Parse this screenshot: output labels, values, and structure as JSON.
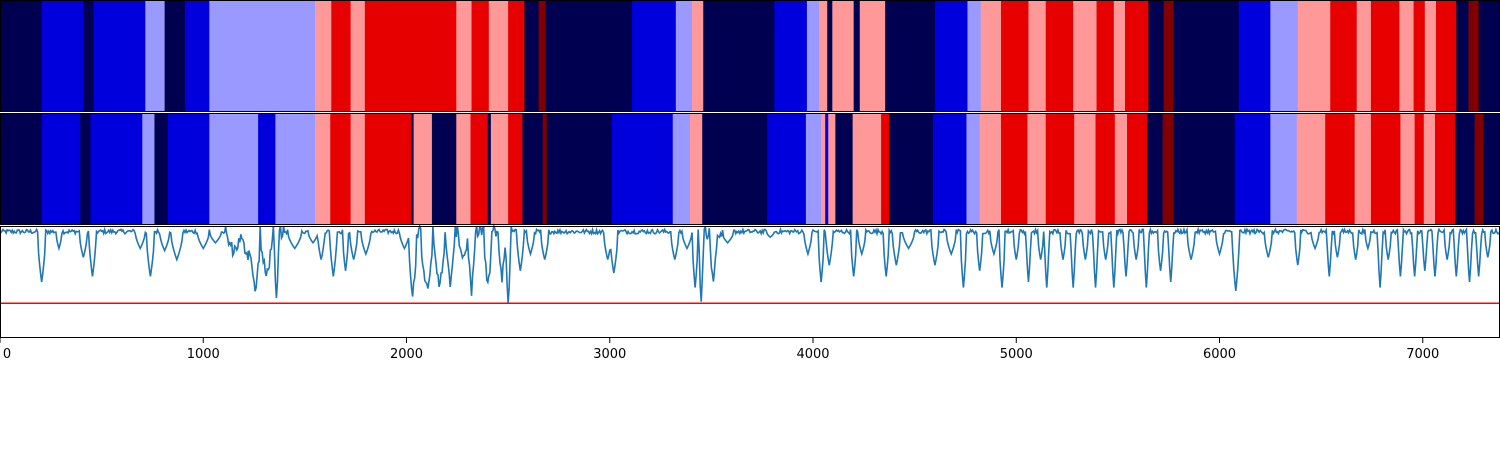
{
  "chart_data": {
    "type": "heatmap",
    "title": "",
    "xlabel": "",
    "ylabel": "",
    "xlim": [
      0,
      7380
    ],
    "x_ticks": [
      0,
      1000,
      2000,
      3000,
      4000,
      5000,
      6000,
      7000
    ],
    "x_tick_labels": [
      "0",
      "1000",
      "2000",
      "3000",
      "4000",
      "5000",
      "6000",
      "7000"
    ],
    "legend": "none",
    "grid": false,
    "palette": {
      "navy": "#000050",
      "blue": "#0000dd",
      "light_blue": "#9999ff",
      "light_red": "#ff9999",
      "red": "#e60000",
      "dark_red": "#800000",
      "line": "#1f77b4",
      "threshold": "#ff0000"
    },
    "state_rows": [
      {
        "segments": [
          [
            0,
            205,
            "navy"
          ],
          [
            205,
            410,
            "blue"
          ],
          [
            410,
            460,
            "navy"
          ],
          [
            460,
            715,
            "blue"
          ],
          [
            715,
            810,
            "light_blue"
          ],
          [
            810,
            910,
            "navy"
          ],
          [
            910,
            1030,
            "blue"
          ],
          [
            1030,
            1550,
            "light_blue"
          ],
          [
            1550,
            1630,
            "light_red"
          ],
          [
            1630,
            1725,
            "red"
          ],
          [
            1725,
            1795,
            "light_red"
          ],
          [
            1795,
            2245,
            "red"
          ],
          [
            2245,
            2320,
            "light_red"
          ],
          [
            2320,
            2405,
            "red"
          ],
          [
            2405,
            2500,
            "light_red"
          ],
          [
            2500,
            2580,
            "red"
          ],
          [
            2580,
            2650,
            "navy"
          ],
          [
            2650,
            2685,
            "dark_red"
          ],
          [
            2685,
            3110,
            "navy"
          ],
          [
            3110,
            3325,
            "blue"
          ],
          [
            3325,
            3405,
            "light_blue"
          ],
          [
            3405,
            3460,
            "light_red"
          ],
          [
            3460,
            3810,
            "navy"
          ],
          [
            3810,
            3970,
            "blue"
          ],
          [
            3970,
            4030,
            "light_blue"
          ],
          [
            4030,
            4070,
            "light_red"
          ],
          [
            4070,
            4095,
            "navy"
          ],
          [
            4095,
            4200,
            "light_red"
          ],
          [
            4200,
            4230,
            "navy"
          ],
          [
            4230,
            4355,
            "light_red"
          ],
          [
            4355,
            4600,
            "navy"
          ],
          [
            4600,
            4760,
            "blue"
          ],
          [
            4760,
            4825,
            "light_blue"
          ],
          [
            4825,
            4925,
            "light_red"
          ],
          [
            4925,
            5060,
            "red"
          ],
          [
            5060,
            5145,
            "light_red"
          ],
          [
            5145,
            5280,
            "red"
          ],
          [
            5280,
            5395,
            "light_red"
          ],
          [
            5395,
            5480,
            "red"
          ],
          [
            5480,
            5535,
            "light_red"
          ],
          [
            5535,
            5650,
            "red"
          ],
          [
            5650,
            5725,
            "navy"
          ],
          [
            5725,
            5775,
            "dark_red"
          ],
          [
            5775,
            6095,
            "navy"
          ],
          [
            6095,
            6250,
            "blue"
          ],
          [
            6250,
            6385,
            "light_blue"
          ],
          [
            6385,
            6545,
            "light_red"
          ],
          [
            6545,
            6675,
            "red"
          ],
          [
            6675,
            6745,
            "light_red"
          ],
          [
            6745,
            6885,
            "red"
          ],
          [
            6885,
            6955,
            "light_red"
          ],
          [
            6955,
            7010,
            "red"
          ],
          [
            7010,
            7065,
            "light_red"
          ],
          [
            7065,
            7165,
            "red"
          ],
          [
            7165,
            7225,
            "navy"
          ],
          [
            7225,
            7275,
            "dark_red"
          ],
          [
            7275,
            7380,
            "navy"
          ]
        ]
      },
      {
        "segments": [
          [
            0,
            205,
            "navy"
          ],
          [
            205,
            395,
            "blue"
          ],
          [
            395,
            445,
            "navy"
          ],
          [
            445,
            700,
            "blue"
          ],
          [
            700,
            760,
            "light_blue"
          ],
          [
            760,
            825,
            "navy"
          ],
          [
            825,
            1030,
            "blue"
          ],
          [
            1030,
            1270,
            "light_blue"
          ],
          [
            1270,
            1355,
            "blue"
          ],
          [
            1355,
            1550,
            "light_blue"
          ],
          [
            1550,
            1625,
            "light_red"
          ],
          [
            1625,
            1725,
            "red"
          ],
          [
            1725,
            1795,
            "light_red"
          ],
          [
            1795,
            2025,
            "red"
          ],
          [
            2025,
            2035,
            "navy"
          ],
          [
            2035,
            2125,
            "light_red"
          ],
          [
            2125,
            2245,
            "navy"
          ],
          [
            2245,
            2315,
            "light_red"
          ],
          [
            2315,
            2400,
            "red"
          ],
          [
            2400,
            2415,
            "navy"
          ],
          [
            2415,
            2500,
            "light_red"
          ],
          [
            2500,
            2570,
            "red"
          ],
          [
            2570,
            2670,
            "navy"
          ],
          [
            2670,
            2690,
            "dark_red"
          ],
          [
            2690,
            3010,
            "navy"
          ],
          [
            3010,
            3020,
            "blue"
          ],
          [
            3020,
            3310,
            "blue"
          ],
          [
            3310,
            3395,
            "light_blue"
          ],
          [
            3395,
            3455,
            "light_red"
          ],
          [
            3455,
            3775,
            "navy"
          ],
          [
            3775,
            3965,
            "blue"
          ],
          [
            3965,
            4040,
            "light_blue"
          ],
          [
            4040,
            4060,
            "light_red"
          ],
          [
            4060,
            4075,
            "blue"
          ],
          [
            4075,
            4110,
            "light_red"
          ],
          [
            4110,
            4195,
            "navy"
          ],
          [
            4195,
            4215,
            "light_red"
          ],
          [
            4215,
            4335,
            "light_red"
          ],
          [
            4335,
            4375,
            "red"
          ],
          [
            4375,
            4590,
            "navy"
          ],
          [
            4590,
            4755,
            "blue"
          ],
          [
            4755,
            4820,
            "light_blue"
          ],
          [
            4820,
            4925,
            "light_red"
          ],
          [
            4925,
            5055,
            "red"
          ],
          [
            5055,
            5145,
            "light_red"
          ],
          [
            5145,
            5285,
            "red"
          ],
          [
            5285,
            5390,
            "light_red"
          ],
          [
            5390,
            5485,
            "red"
          ],
          [
            5485,
            5545,
            "light_red"
          ],
          [
            5545,
            5645,
            "red"
          ],
          [
            5645,
            5720,
            "navy"
          ],
          [
            5720,
            5775,
            "dark_red"
          ],
          [
            5775,
            6075,
            "navy"
          ],
          [
            6075,
            6250,
            "blue"
          ],
          [
            6250,
            6380,
            "light_blue"
          ],
          [
            6380,
            6520,
            "light_red"
          ],
          [
            6520,
            6665,
            "red"
          ],
          [
            6665,
            6745,
            "light_red"
          ],
          [
            6745,
            6890,
            "red"
          ],
          [
            6890,
            6960,
            "light_red"
          ],
          [
            6960,
            7005,
            "red"
          ],
          [
            7005,
            7060,
            "light_red"
          ],
          [
            7060,
            7160,
            "red"
          ],
          [
            7160,
            7255,
            "navy"
          ],
          [
            7255,
            7300,
            "dark_red"
          ],
          [
            7300,
            7380,
            "navy"
          ]
        ]
      }
    ],
    "line_panel": {
      "ylim": [
        0,
        1
      ],
      "threshold": 0.31,
      "baseline": 0.95,
      "dips": [
        [
          205,
          0.5,
          20
        ],
        [
          290,
          0.8,
          15
        ],
        [
          410,
          0.72,
          20
        ],
        [
          455,
          0.55,
          18
        ],
        [
          690,
          0.8,
          25
        ],
        [
          740,
          0.55,
          20
        ],
        [
          810,
          0.78,
          25
        ],
        [
          870,
          0.7,
          30
        ],
        [
          1000,
          0.8,
          30
        ],
        [
          1060,
          0.85,
          30
        ],
        [
          1150,
          0.78,
          40
        ],
        [
          1220,
          0.75,
          40
        ],
        [
          1255,
          0.4,
          25
        ],
        [
          1310,
          0.55,
          30
        ],
        [
          1360,
          0.3,
          12
        ],
        [
          1450,
          0.8,
          35
        ],
        [
          1540,
          0.85,
          25
        ],
        [
          1580,
          0.7,
          18
        ],
        [
          1640,
          0.55,
          18
        ],
        [
          1700,
          0.6,
          15
        ],
        [
          1740,
          0.7,
          20
        ],
        [
          1800,
          0.75,
          25
        ],
        [
          1990,
          0.8,
          25
        ],
        [
          2030,
          0.35,
          20
        ],
        [
          2100,
          0.45,
          30
        ],
        [
          2160,
          0.48,
          30
        ],
        [
          2215,
          0.5,
          25
        ],
        [
          2280,
          0.72,
          25
        ],
        [
          2320,
          0.4,
          18
        ],
        [
          2400,
          0.45,
          20
        ],
        [
          2470,
          0.55,
          20
        ],
        [
          2500,
          0.32,
          12
        ],
        [
          2560,
          0.6,
          18
        ],
        [
          2610,
          0.75,
          20
        ],
        [
          2680,
          0.7,
          20
        ],
        [
          2990,
          0.7,
          20
        ],
        [
          3020,
          0.58,
          20
        ],
        [
          3320,
          0.7,
          20
        ],
        [
          3380,
          0.8,
          25
        ],
        [
          3420,
          0.45,
          15
        ],
        [
          3450,
          0.33,
          12
        ],
        [
          3510,
          0.55,
          20
        ],
        [
          3580,
          0.85,
          30
        ],
        [
          3790,
          0.9,
          20
        ],
        [
          3975,
          0.75,
          20
        ],
        [
          4040,
          0.5,
          15
        ],
        [
          4080,
          0.65,
          18
        ],
        [
          4200,
          0.55,
          15
        ],
        [
          4240,
          0.75,
          20
        ],
        [
          4360,
          0.55,
          15
        ],
        [
          4410,
          0.65,
          20
        ],
        [
          4470,
          0.8,
          30
        ],
        [
          4600,
          0.65,
          20
        ],
        [
          4680,
          0.75,
          25
        ],
        [
          4740,
          0.45,
          15
        ],
        [
          4820,
          0.6,
          15
        ],
        [
          4890,
          0.75,
          20
        ],
        [
          4930,
          0.45,
          15
        ],
        [
          5000,
          0.7,
          15
        ],
        [
          5060,
          0.5,
          12
        ],
        [
          5120,
          0.7,
          15
        ],
        [
          5150,
          0.45,
          12
        ],
        [
          5230,
          0.7,
          15
        ],
        [
          5280,
          0.45,
          12
        ],
        [
          5340,
          0.7,
          15
        ],
        [
          5390,
          0.45,
          12
        ],
        [
          5440,
          0.7,
          15
        ],
        [
          5480,
          0.45,
          12
        ],
        [
          5540,
          0.55,
          12
        ],
        [
          5590,
          0.7,
          15
        ],
        [
          5640,
          0.45,
          12
        ],
        [
          5710,
          0.6,
          15
        ],
        [
          5760,
          0.5,
          12
        ],
        [
          5860,
          0.7,
          20
        ],
        [
          6000,
          0.75,
          20
        ],
        [
          6080,
          0.42,
          18
        ],
        [
          6240,
          0.72,
          20
        ],
        [
          6385,
          0.65,
          15
        ],
        [
          6470,
          0.8,
          20
        ],
        [
          6540,
          0.55,
          12
        ],
        [
          6580,
          0.72,
          15
        ],
        [
          6670,
          0.7,
          15
        ],
        [
          6730,
          0.8,
          15
        ],
        [
          6790,
          0.45,
          12
        ],
        [
          6830,
          0.7,
          15
        ],
        [
          6890,
          0.55,
          12
        ],
        [
          6960,
          0.55,
          12
        ],
        [
          7010,
          0.6,
          12
        ],
        [
          7060,
          0.55,
          12
        ],
        [
          7120,
          0.7,
          15
        ],
        [
          7165,
          0.55,
          12
        ],
        [
          7230,
          0.5,
          12
        ],
        [
          7275,
          0.55,
          12
        ],
        [
          7320,
          0.72,
          15
        ]
      ]
    }
  }
}
